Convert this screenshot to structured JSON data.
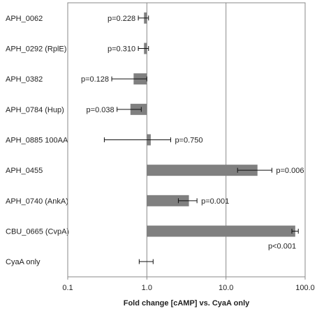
{
  "chart_data": {
    "type": "bar",
    "orientation": "horizontal",
    "x_scale": "log",
    "xlim": [
      0.1,
      100
    ],
    "xticks": [
      "0.1",
      "1.0",
      "10.0",
      "100.0"
    ],
    "xlabel": "Fold change [cAMP] vs. CyaA only",
    "title": "",
    "gridlines_x": [
      1,
      10
    ],
    "bar_color": "#808080",
    "categories": [
      "APH_0062",
      "APH_0292 (RplE)",
      "APH_0382",
      "APH_0784 (Hup)",
      "APH_0885 100AA",
      "APH_0455",
      "APH_0740 (AnkA)",
      "CBU_0665 (CvpA)",
      "CyaA only"
    ],
    "values": [
      0.92,
      0.92,
      0.68,
      0.62,
      1.12,
      25,
      3.4,
      75,
      1.0
    ],
    "error_low": [
      0.78,
      0.78,
      0.36,
      0.42,
      0.29,
      14,
      2.5,
      68,
      0.8
    ],
    "error_high": [
      1.05,
      1.05,
      1.0,
      0.85,
      2.0,
      38,
      4.3,
      82,
      1.2
    ],
    "p_values": [
      "p=0.228",
      "p=0.310",
      "p=0.128",
      "p=0.038",
      "p=0.750",
      "p=0.006",
      "p=0.001",
      "p<0.001",
      ""
    ]
  }
}
